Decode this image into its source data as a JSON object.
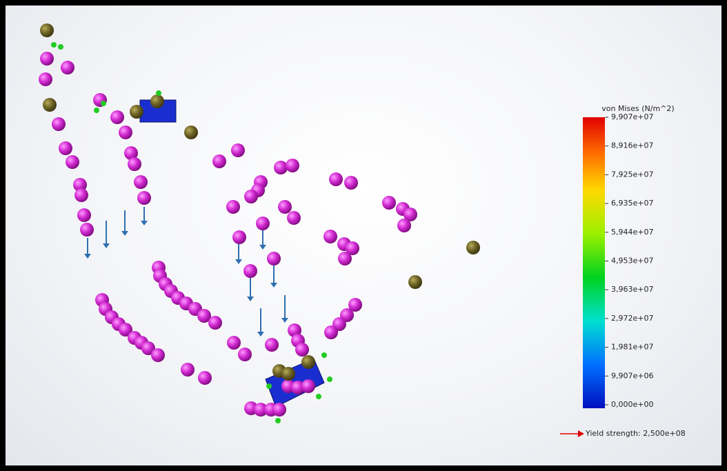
{
  "legend": {
    "title": "von Mises (N/m^2)",
    "labels": [
      "9,907e+07",
      "8,916e+07",
      "7,925e+07",
      "6,935e+07",
      "5,944e+07",
      "4,953e+07",
      "3,963e+07",
      "2,972e+07",
      "1,981e+07",
      "9,907e+06",
      "0,000e+00"
    ],
    "yield_strength": "Yield strength: 2,500e+08"
  }
}
